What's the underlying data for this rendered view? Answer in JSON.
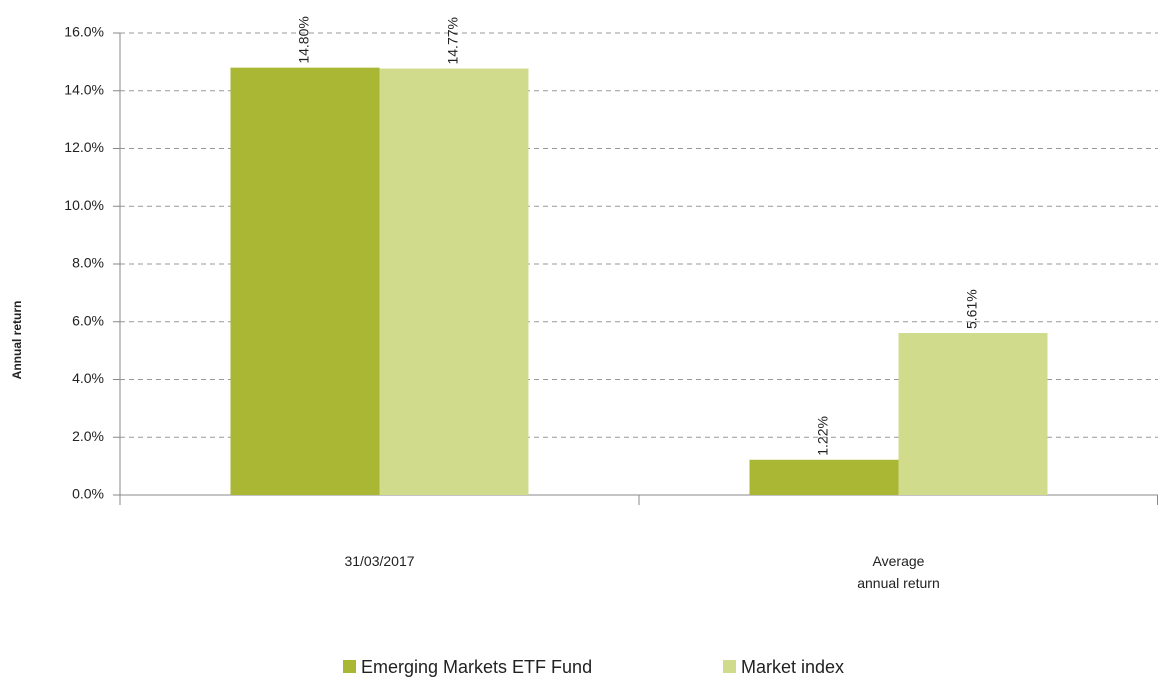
{
  "chart_data": {
    "type": "bar",
    "y_label": "Annual return",
    "categories": [
      "31/03/2017",
      "Average annual return"
    ],
    "series": [
      {
        "name": "Emerging Markets ETF Fund",
        "color": "#a9b734",
        "values": [
          14.8,
          1.22
        ],
        "value_labels": [
          "14.80%",
          "1.22%"
        ]
      },
      {
        "name": "Market index",
        "color": "#d0dc8c",
        "values": [
          14.77,
          5.61
        ],
        "value_labels": [
          "14.77%",
          "5.61%"
        ]
      }
    ],
    "ylim": [
      0,
      16
    ],
    "yticks": [
      {
        "value": 0,
        "label": "0.0%"
      },
      {
        "value": 2,
        "label": "2.0%"
      },
      {
        "value": 4,
        "label": "4.0%"
      },
      {
        "value": 6,
        "label": "6.0%"
      },
      {
        "value": 8,
        "label": "8.0%"
      },
      {
        "value": 10,
        "label": "10.0%"
      },
      {
        "value": 12,
        "label": "12.0%"
      },
      {
        "value": 14,
        "label": "14.0%"
      },
      {
        "value": 16,
        "label": "16.0%"
      }
    ],
    "grid": true,
    "legend": "bottom"
  }
}
